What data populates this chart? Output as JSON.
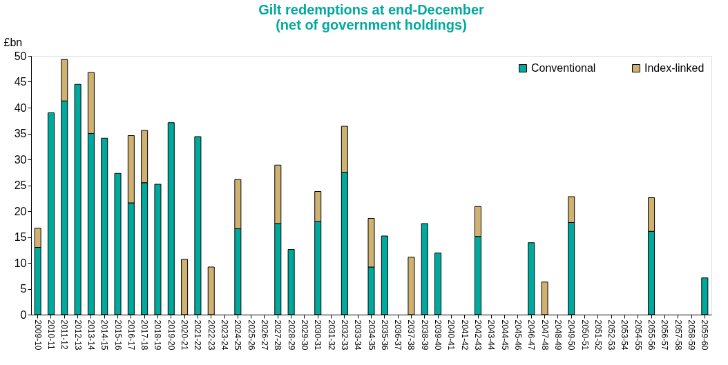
{
  "chart_data": {
    "type": "bar",
    "title": [
      "Gilt redemptions at end-December",
      "(net of government holdings)"
    ],
    "ylabel": "£bn",
    "categories": [
      "2009-10",
      "2010-11",
      "2011-12",
      "2012-13",
      "2013-14",
      "2014-15",
      "2015-16",
      "2016-17",
      "2017-18",
      "2018-19",
      "2019-20",
      "2020-21",
      "2021-22",
      "2022-23",
      "2023-24",
      "2024-25",
      "2025-26",
      "2026-27",
      "2027-28",
      "2028-29",
      "2029-30",
      "2030-31",
      "2031-32",
      "2032-33",
      "2033-34",
      "2034-35",
      "2035-36",
      "2036-37",
      "2037-38",
      "2038-39",
      "2039-40",
      "2040-41",
      "2041-42",
      "2042-43",
      "2043-44",
      "2044-45",
      "2045-46",
      "2046-47",
      "2047-48",
      "2048-49",
      "2049-50",
      "2050-51",
      "2051-52",
      "2052-53",
      "2053-54",
      "2054-55",
      "2055-56",
      "2056-57",
      "2057-58",
      "2058-59",
      "2059-60"
    ],
    "stacked": true,
    "series": [
      {
        "name": "Conventional",
        "color": "#00a99d",
        "values": [
          13,
          39,
          41.3,
          44.5,
          35,
          34.1,
          27.3,
          21.6,
          25.5,
          25.2,
          37.1,
          null,
          34.4,
          null,
          null,
          16.6,
          null,
          null,
          17.6,
          12.6,
          null,
          18,
          null,
          27.5,
          null,
          9.2,
          15.2,
          null,
          null,
          17.6,
          11.9,
          null,
          null,
          15.1,
          null,
          null,
          null,
          13.9,
          null,
          null,
          17.8,
          null,
          null,
          null,
          null,
          null,
          16.1,
          null,
          null,
          null,
          7.1
        ]
      },
      {
        "name": "Index-linked",
        "color": "#cfb272",
        "values": [
          3.7,
          null,
          8,
          null,
          11.8,
          null,
          null,
          13,
          10.1,
          null,
          null,
          10.7,
          null,
          9.2,
          null,
          9.5,
          null,
          null,
          11.3,
          null,
          null,
          5.8,
          null,
          8.9,
          null,
          9.4,
          null,
          null,
          11.1,
          null,
          null,
          null,
          null,
          5.8,
          null,
          null,
          null,
          null,
          6.3,
          null,
          5,
          null,
          null,
          null,
          null,
          null,
          6.5,
          null,
          null,
          null,
          null
        ]
      }
    ],
    "ylim": [
      0,
      50
    ],
    "yticks": [
      0,
      5,
      10,
      15,
      20,
      25,
      30,
      35,
      40,
      45,
      50
    ],
    "grid": false,
    "legend": "top right"
  }
}
